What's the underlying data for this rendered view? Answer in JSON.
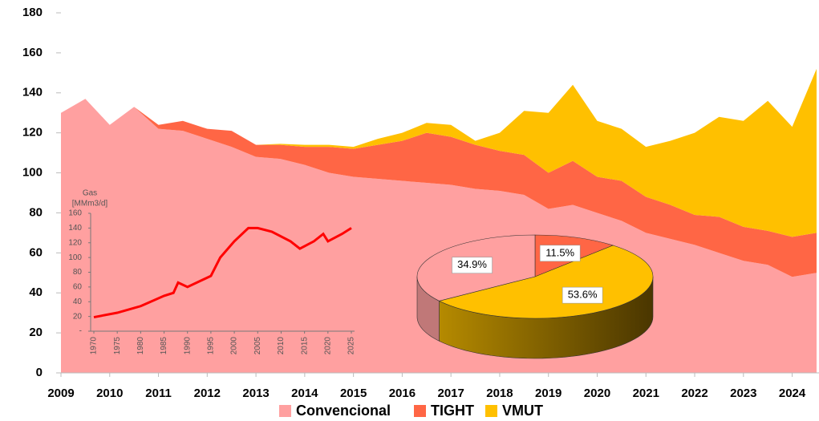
{
  "chart_data": [
    {
      "type": "area",
      "x": [
        2009,
        2009.5,
        2010,
        2010.5,
        2011,
        2011.5,
        2012,
        2012.5,
        2013,
        2013.5,
        2014,
        2014.5,
        2015,
        2015.5,
        2016,
        2016.5,
        2017,
        2017.5,
        2018,
        2018.5,
        2019,
        2019.5,
        2020,
        2020.5,
        2021,
        2021.5,
        2022,
        2022.5,
        2023,
        2023.5,
        2024,
        2024.5
      ],
      "series": [
        {
          "name": "Convencional",
          "color": "#ffa0a0",
          "values": [
            130,
            137,
            124,
            133,
            122,
            121,
            117,
            113,
            108,
            107,
            104,
            100,
            98,
            97,
            96,
            95,
            94,
            92,
            91,
            89,
            82,
            84,
            80,
            76,
            70,
            67,
            64,
            60,
            56,
            54,
            48,
            50
          ]
        },
        {
          "name": "TIGHT",
          "color": "#ff6645",
          "values": [
            0,
            0,
            0,
            0,
            2,
            5,
            5,
            8,
            6,
            7,
            9,
            13,
            14,
            17,
            20,
            25,
            24,
            22,
            20,
            20,
            18,
            22,
            18,
            20,
            18,
            17,
            15,
            18,
            17,
            17,
            20,
            20
          ]
        },
        {
          "name": "VMUT",
          "color": "#ffc000",
          "values": [
            0,
            0,
            0,
            0,
            0,
            0,
            0,
            0,
            0,
            0.5,
            1,
            1,
            1,
            3,
            4,
            5,
            6,
            2,
            9,
            22,
            30,
            38,
            28,
            26,
            25,
            32,
            41,
            50,
            53,
            65,
            55,
            82
          ]
        }
      ],
      "xlim": [
        2009,
        2024.55
      ],
      "xticks": [
        2009,
        2010,
        2011,
        2012,
        2013,
        2014,
        2015,
        2016,
        2017,
        2018,
        2019,
        2020,
        2021,
        2022,
        2023,
        2024
      ],
      "ylim": [
        0,
        180
      ],
      "yticks": [
        0,
        20,
        40,
        60,
        80,
        100,
        120,
        140,
        160,
        180
      ],
      "stacked": true,
      "legend": "bottom"
    },
    {
      "type": "line",
      "ylabel": [
        "Gas",
        "[MMm3/d]"
      ],
      "x": [
        1970,
        1975,
        1980,
        1985,
        1987,
        1988,
        1990,
        1995,
        1997,
        2000,
        2003,
        2005,
        2008,
        2012,
        2014,
        2017,
        2019,
        2020,
        2023,
        2025
      ],
      "series": [
        {
          "color": "#ff0000",
          "values": [
            19,
            25,
            34,
            48,
            52,
            66,
            60,
            75,
            100,
            122,
            140,
            140,
            135,
            122,
            112,
            122,
            132,
            122,
            132,
            140
          ]
        }
      ],
      "xlim": [
        1970,
        2025
      ],
      "xticks": [
        1970,
        1975,
        1980,
        1985,
        1990,
        1995,
        2000,
        2005,
        2010,
        2015,
        2020,
        2025
      ],
      "ylim": [
        0,
        160
      ],
      "yticks": [
        {
          "value": 0,
          "label": "-"
        },
        20,
        40,
        60,
        80,
        100,
        120,
        140,
        160
      ]
    },
    {
      "type": "pie",
      "values": [
        11.5,
        53.6,
        34.9
      ],
      "value_labels": [
        "11.5%",
        "53.6%",
        "34.9%"
      ],
      "colors": [
        "#ff6645",
        "#ffc000",
        "#ffa0a0"
      ]
    }
  ]
}
